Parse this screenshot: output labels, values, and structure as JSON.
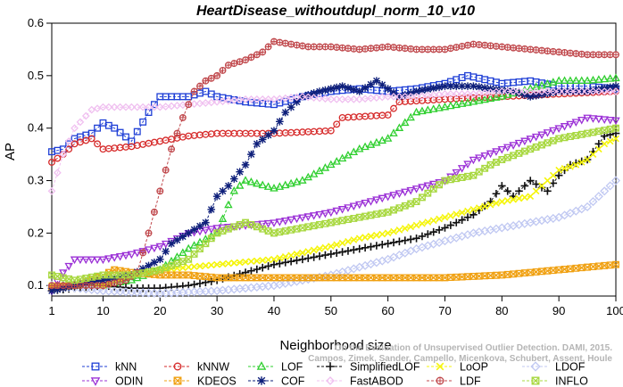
{
  "chart_data": {
    "type": "line",
    "title": "HeartDisease_withoutdupl_norm_10_v10",
    "xlabel": "Neighborhood size",
    "ylabel": "AP",
    "xlim": [
      1,
      100
    ],
    "ylim": [
      0.08,
      0.6
    ],
    "x_ticks": [
      1,
      10,
      20,
      30,
      40,
      50,
      60,
      70,
      80,
      90,
      100
    ],
    "y_ticks": [
      0.1,
      0.2,
      0.3,
      0.4,
      0.5,
      0.6
    ],
    "y_tick_labels": [
      "0.1",
      "0.2",
      "0.3",
      "0.4",
      "0.5",
      "0.6"
    ],
    "grid": false,
    "legend_position": "bottom",
    "watermark": [
      "Campos, Zimek, Sander, Campello, Micenkova, Schubert, Assent, Houle",
      "On the Evaluation of Unsupervised Outlier Detection. DAMI, 2015."
    ],
    "series": [
      {
        "name": "kNN",
        "color": "#1f3fd6",
        "marker": "square",
        "points": [
          [
            1,
            0.355
          ],
          [
            3,
            0.36
          ],
          [
            5,
            0.38
          ],
          [
            8,
            0.39
          ],
          [
            10,
            0.41
          ],
          [
            12,
            0.4
          ],
          [
            15,
            0.375
          ],
          [
            18,
            0.43
          ],
          [
            20,
            0.46
          ],
          [
            25,
            0.46
          ],
          [
            28,
            0.47
          ],
          [
            30,
            0.46
          ],
          [
            35,
            0.45
          ],
          [
            40,
            0.445
          ],
          [
            45,
            0.46
          ],
          [
            50,
            0.47
          ],
          [
            55,
            0.475
          ],
          [
            60,
            0.47
          ],
          [
            65,
            0.475
          ],
          [
            70,
            0.485
          ],
          [
            74,
            0.5
          ],
          [
            80,
            0.485
          ],
          [
            85,
            0.49
          ],
          [
            90,
            0.48
          ],
          [
            95,
            0.48
          ],
          [
            100,
            0.475
          ]
        ]
      },
      {
        "name": "kNNW",
        "color": "#d62a2a",
        "marker": "circle",
        "points": [
          [
            1,
            0.335
          ],
          [
            3,
            0.35
          ],
          [
            5,
            0.37
          ],
          [
            8,
            0.38
          ],
          [
            10,
            0.36
          ],
          [
            15,
            0.365
          ],
          [
            20,
            0.375
          ],
          [
            25,
            0.385
          ],
          [
            30,
            0.39
          ],
          [
            40,
            0.39
          ],
          [
            50,
            0.395
          ],
          [
            52,
            0.42
          ],
          [
            60,
            0.425
          ],
          [
            62,
            0.45
          ],
          [
            70,
            0.455
          ],
          [
            80,
            0.46
          ],
          [
            90,
            0.465
          ],
          [
            100,
            0.47
          ]
        ]
      },
      {
        "name": "LOF",
        "color": "#2fcf2f",
        "marker": "triangle-up",
        "points": [
          [
            1,
            0.1
          ],
          [
            10,
            0.1
          ],
          [
            15,
            0.11
          ],
          [
            20,
            0.13
          ],
          [
            25,
            0.17
          ],
          [
            30,
            0.2
          ],
          [
            33,
            0.28
          ],
          [
            35,
            0.3
          ],
          [
            40,
            0.285
          ],
          [
            45,
            0.3
          ],
          [
            50,
            0.33
          ],
          [
            55,
            0.36
          ],
          [
            60,
            0.38
          ],
          [
            62,
            0.4
          ],
          [
            65,
            0.43
          ],
          [
            70,
            0.44
          ],
          [
            75,
            0.45
          ],
          [
            80,
            0.46
          ],
          [
            85,
            0.475
          ],
          [
            90,
            0.49
          ],
          [
            95,
            0.49
          ],
          [
            100,
            0.495
          ]
        ]
      },
      {
        "name": "SimplifiedLOF",
        "color": "#111111",
        "marker": "plus",
        "points": [
          [
            1,
            0.09
          ],
          [
            5,
            0.095
          ],
          [
            10,
            0.1
          ],
          [
            15,
            0.095
          ],
          [
            20,
            0.095
          ],
          [
            25,
            0.1
          ],
          [
            30,
            0.11
          ],
          [
            35,
            0.125
          ],
          [
            40,
            0.14
          ],
          [
            45,
            0.15
          ],
          [
            50,
            0.16
          ],
          [
            55,
            0.17
          ],
          [
            60,
            0.18
          ],
          [
            65,
            0.19
          ],
          [
            70,
            0.21
          ],
          [
            75,
            0.235
          ],
          [
            78,
            0.26
          ],
          [
            80,
            0.29
          ],
          [
            82,
            0.27
          ],
          [
            85,
            0.3
          ],
          [
            88,
            0.28
          ],
          [
            90,
            0.31
          ],
          [
            92,
            0.33
          ],
          [
            95,
            0.34
          ],
          [
            98,
            0.385
          ],
          [
            100,
            0.39
          ]
        ]
      },
      {
        "name": "LoOP",
        "color": "#f5f50a",
        "marker": "x",
        "points": [
          [
            1,
            0.1
          ],
          [
            5,
            0.1
          ],
          [
            10,
            0.1
          ],
          [
            15,
            0.12
          ],
          [
            20,
            0.13
          ],
          [
            30,
            0.14
          ],
          [
            40,
            0.15
          ],
          [
            50,
            0.175
          ],
          [
            55,
            0.19
          ],
          [
            60,
            0.2
          ],
          [
            65,
            0.215
          ],
          [
            70,
            0.23
          ],
          [
            75,
            0.245
          ],
          [
            80,
            0.26
          ],
          [
            85,
            0.27
          ],
          [
            88,
            0.3
          ],
          [
            90,
            0.32
          ],
          [
            93,
            0.33
          ],
          [
            95,
            0.34
          ],
          [
            98,
            0.37
          ],
          [
            100,
            0.38
          ]
        ]
      },
      {
        "name": "LDOF",
        "color": "#c0c8f2",
        "marker": "diamond",
        "points": [
          [
            1,
            0.1
          ],
          [
            10,
            0.09
          ],
          [
            20,
            0.085
          ],
          [
            30,
            0.09
          ],
          [
            40,
            0.1
          ],
          [
            50,
            0.12
          ],
          [
            60,
            0.15
          ],
          [
            65,
            0.17
          ],
          [
            70,
            0.185
          ],
          [
            75,
            0.2
          ],
          [
            80,
            0.21
          ],
          [
            85,
            0.22
          ],
          [
            90,
            0.23
          ],
          [
            95,
            0.25
          ],
          [
            100,
            0.3
          ]
        ]
      },
      {
        "name": "ODIN",
        "color": "#9b30d6",
        "marker": "triangle-down",
        "points": [
          [
            1,
            0.09
          ],
          [
            3,
            0.125
          ],
          [
            5,
            0.15
          ],
          [
            10,
            0.15
          ],
          [
            15,
            0.16
          ],
          [
            20,
            0.175
          ],
          [
            25,
            0.2
          ],
          [
            30,
            0.21
          ],
          [
            35,
            0.215
          ],
          [
            40,
            0.22
          ],
          [
            45,
            0.23
          ],
          [
            50,
            0.24
          ],
          [
            55,
            0.255
          ],
          [
            60,
            0.27
          ],
          [
            65,
            0.285
          ],
          [
            70,
            0.3
          ],
          [
            75,
            0.34
          ],
          [
            80,
            0.36
          ],
          [
            85,
            0.38
          ],
          [
            90,
            0.4
          ],
          [
            95,
            0.42
          ],
          [
            100,
            0.415
          ]
        ]
      },
      {
        "name": "KDEOS",
        "color": "#f0a010",
        "marker": "square-x",
        "points": [
          [
            1,
            0.095
          ],
          [
            5,
            0.1
          ],
          [
            10,
            0.12
          ],
          [
            12,
            0.13
          ],
          [
            15,
            0.125
          ],
          [
            20,
            0.12
          ],
          [
            25,
            0.12
          ],
          [
            30,
            0.115
          ],
          [
            40,
            0.115
          ],
          [
            50,
            0.115
          ],
          [
            60,
            0.115
          ],
          [
            70,
            0.115
          ],
          [
            80,
            0.12
          ],
          [
            90,
            0.13
          ],
          [
            100,
            0.14
          ]
        ]
      },
      {
        "name": "COF",
        "color": "#0e1f7a",
        "marker": "asterisk",
        "points": [
          [
            1,
            0.09
          ],
          [
            5,
            0.1
          ],
          [
            10,
            0.11
          ],
          [
            15,
            0.12
          ],
          [
            20,
            0.15
          ],
          [
            22,
            0.18
          ],
          [
            25,
            0.2
          ],
          [
            28,
            0.22
          ],
          [
            30,
            0.27
          ],
          [
            32,
            0.29
          ],
          [
            35,
            0.33
          ],
          [
            37,
            0.37
          ],
          [
            40,
            0.395
          ],
          [
            42,
            0.43
          ],
          [
            45,
            0.46
          ],
          [
            48,
            0.47
          ],
          [
            52,
            0.48
          ],
          [
            55,
            0.47
          ],
          [
            58,
            0.49
          ],
          [
            62,
            0.46
          ],
          [
            65,
            0.47
          ],
          [
            70,
            0.48
          ],
          [
            75,
            0.48
          ],
          [
            78,
            0.475
          ],
          [
            82,
            0.47
          ],
          [
            85,
            0.46
          ],
          [
            90,
            0.47
          ],
          [
            95,
            0.47
          ],
          [
            100,
            0.48
          ]
        ]
      },
      {
        "name": "FastABOD",
        "color": "#f0c0f0",
        "marker": "diamond-small",
        "points": [
          [
            1,
            0.28
          ],
          [
            3,
            0.35
          ],
          [
            5,
            0.4
          ],
          [
            8,
            0.435
          ],
          [
            10,
            0.44
          ],
          [
            15,
            0.44
          ],
          [
            20,
            0.44
          ],
          [
            25,
            0.445
          ],
          [
            30,
            0.45
          ],
          [
            35,
            0.455
          ],
          [
            40,
            0.455
          ],
          [
            45,
            0.46
          ],
          [
            50,
            0.455
          ],
          [
            55,
            0.455
          ],
          [
            60,
            0.46
          ],
          [
            65,
            0.46
          ],
          [
            70,
            0.465
          ],
          [
            75,
            0.465
          ],
          [
            80,
            0.47
          ],
          [
            85,
            0.47
          ],
          [
            90,
            0.47
          ],
          [
            95,
            0.47
          ],
          [
            100,
            0.47
          ]
        ]
      },
      {
        "name": "LDF",
        "color": "#c0484c",
        "marker": "circle-plus",
        "points": [
          [
            1,
            0.1
          ],
          [
            5,
            0.1
          ],
          [
            10,
            0.1
          ],
          [
            14,
            0.11
          ],
          [
            16,
            0.125
          ],
          [
            18,
            0.2
          ],
          [
            20,
            0.28
          ],
          [
            22,
            0.36
          ],
          [
            24,
            0.42
          ],
          [
            26,
            0.47
          ],
          [
            28,
            0.49
          ],
          [
            30,
            0.5
          ],
          [
            32,
            0.52
          ],
          [
            35,
            0.53
          ],
          [
            38,
            0.545
          ],
          [
            40,
            0.565
          ],
          [
            43,
            0.56
          ],
          [
            46,
            0.555
          ],
          [
            50,
            0.555
          ],
          [
            55,
            0.55
          ],
          [
            60,
            0.555
          ],
          [
            65,
            0.55
          ],
          [
            70,
            0.55
          ],
          [
            75,
            0.56
          ],
          [
            80,
            0.555
          ],
          [
            85,
            0.55
          ],
          [
            90,
            0.545
          ],
          [
            95,
            0.54
          ],
          [
            100,
            0.54
          ]
        ]
      },
      {
        "name": "INFLO",
        "color": "#a8d840",
        "marker": "square-x",
        "points": [
          [
            1,
            0.12
          ],
          [
            5,
            0.11
          ],
          [
            10,
            0.12
          ],
          [
            15,
            0.12
          ],
          [
            20,
            0.13
          ],
          [
            25,
            0.15
          ],
          [
            30,
            0.2
          ],
          [
            35,
            0.22
          ],
          [
            40,
            0.2
          ],
          [
            45,
            0.21
          ],
          [
            50,
            0.22
          ],
          [
            55,
            0.23
          ],
          [
            60,
            0.24
          ],
          [
            65,
            0.26
          ],
          [
            70,
            0.3
          ],
          [
            75,
            0.31
          ],
          [
            78,
            0.33
          ],
          [
            80,
            0.34
          ],
          [
            85,
            0.36
          ],
          [
            90,
            0.38
          ],
          [
            95,
            0.39
          ],
          [
            100,
            0.4
          ]
        ]
      }
    ]
  }
}
